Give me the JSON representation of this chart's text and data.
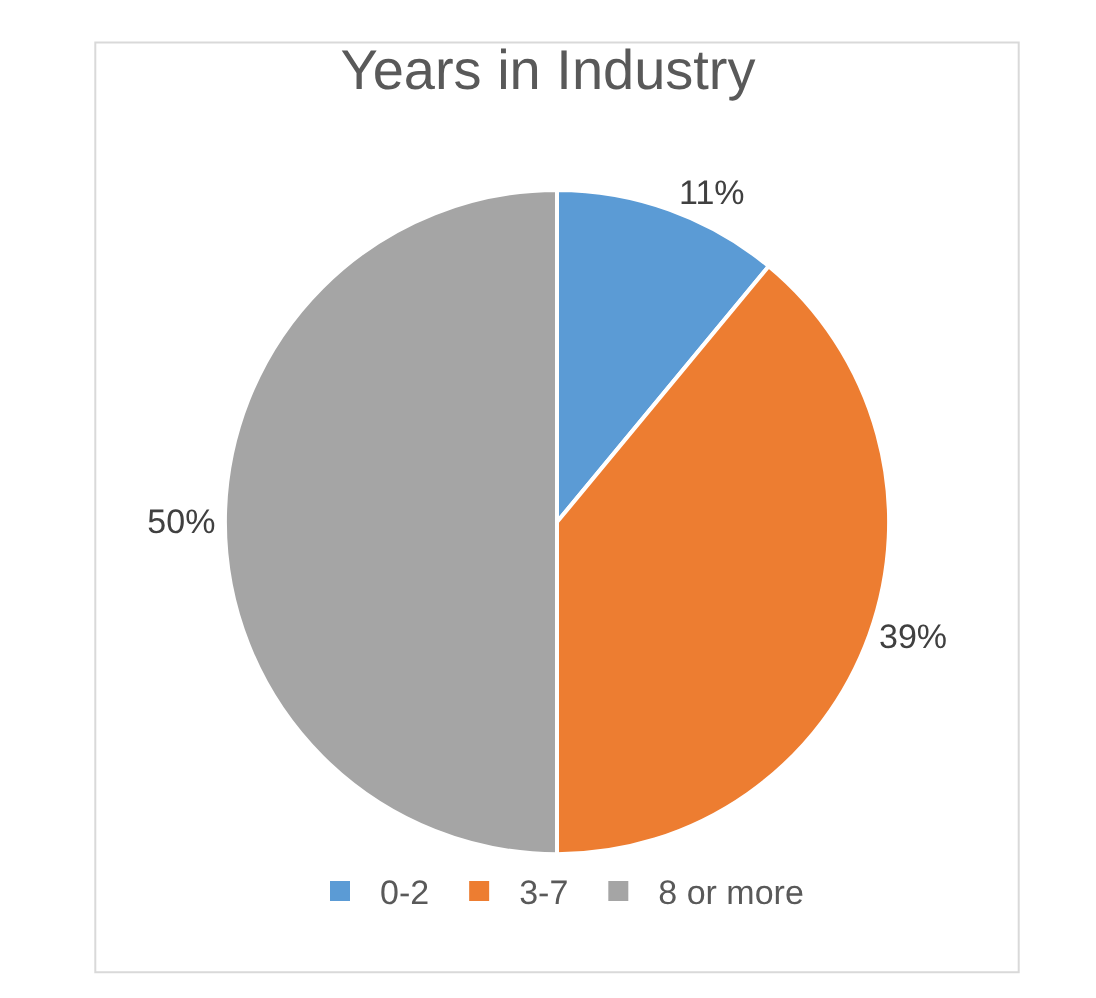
{
  "chart_data": {
    "type": "pie",
    "title": "Years in Industry",
    "categories": [
      "0-2",
      "3-7",
      "8 or more"
    ],
    "values": [
      11,
      39,
      50
    ],
    "colors": [
      "#5b9bd5",
      "#ed7d31",
      "#a5a5a5"
    ],
    "value_labels": [
      "11%",
      "39%",
      "50%"
    ],
    "legend": "bottom"
  }
}
